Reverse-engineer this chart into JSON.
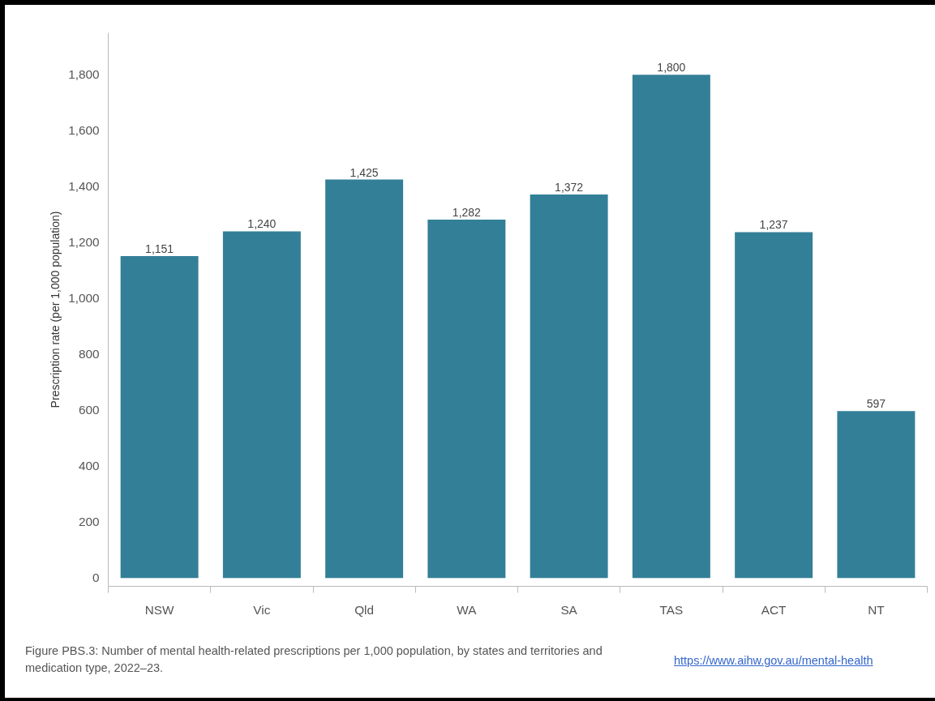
{
  "chart_data": {
    "type": "bar",
    "ylabel": "Prescription rate (per 1,000 population)",
    "categories": [
      "NSW",
      "Vic",
      "Qld",
      "WA",
      "SA",
      "TAS",
      "ACT",
      "NT"
    ],
    "values": [
      1151,
      1240,
      1425,
      1282,
      1372,
      1800,
      1237,
      597
    ],
    "color": "#337f97",
    "ylim": [
      -30,
      1950
    ],
    "yticks": [
      {
        "value": 0,
        "label": "0"
      },
      {
        "value": 200,
        "label": "200"
      },
      {
        "value": 400,
        "label": "400"
      },
      {
        "value": 600,
        "label": "600"
      },
      {
        "value": 800,
        "label": "800"
      },
      {
        "value": 1000,
        "label": "1,000"
      },
      {
        "value": 1200,
        "label": "1,200"
      },
      {
        "value": 1400,
        "label": "1,400"
      },
      {
        "value": 1600,
        "label": "1,600"
      },
      {
        "value": 1800,
        "label": "1,800"
      }
    ],
    "value_labels": [
      "1,151",
      "1,240",
      "1,425",
      "1,282",
      "1,372",
      "1,800",
      "1,237",
      "597"
    ],
    "grid": false,
    "annotations": [
      "Figure PBS.3: Number of mental health-related prescriptions per 1,000 population, by states and territories and medication type, 2022–23.",
      "https://www.aihw.gov.au/mental-health"
    ]
  }
}
